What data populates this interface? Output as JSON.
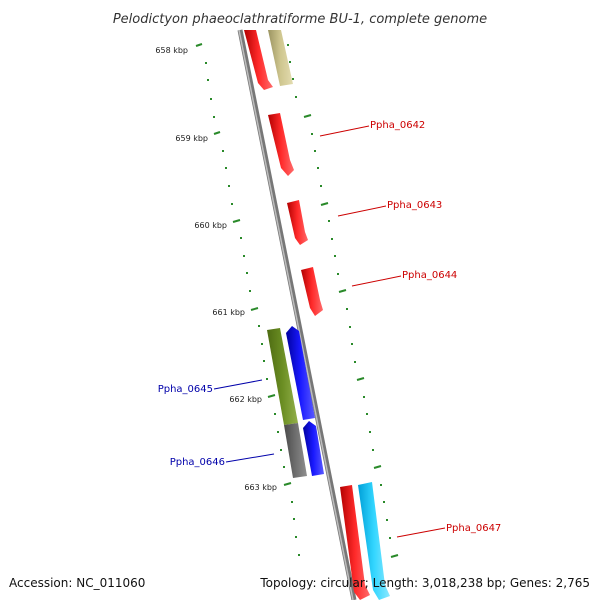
{
  "title": "Pelodictyon phaeoclathratiforme BU-1, complete genome",
  "footer": {
    "accession": "Accession: NC_011060",
    "summary": "Topology: circular; Length: 3,018,238 bp; Genes: 2,765"
  },
  "ticks": [
    "658 kbp",
    "659 kbp",
    "660 kbp",
    "661 kbp",
    "662 kbp",
    "663 kbp"
  ],
  "genes": [
    {
      "id": "gene-top-a",
      "label": "",
      "color": "#ff0000"
    },
    {
      "id": "gene-top-b",
      "label": "",
      "color": "#c8c08a"
    },
    {
      "id": "gene-0642",
      "label": "Ppha_0642",
      "color": "#ff0000",
      "label_color": "#cc0000"
    },
    {
      "id": "gene-0643",
      "label": "Ppha_0643",
      "color": "#ff0000",
      "label_color": "#cc0000"
    },
    {
      "id": "gene-0644",
      "label": "Ppha_0644",
      "color": "#ff0000",
      "label_color": "#cc0000"
    },
    {
      "id": "gene-0645",
      "label": "Ppha_0645",
      "color": "#0000ff",
      "label_color": "#0000aa"
    },
    {
      "id": "gene-0646",
      "label": "Ppha_0646",
      "color": "#0000ff",
      "label_color": "#0000aa"
    },
    {
      "id": "gene-0647",
      "label": "Ppha_0647",
      "color": "#ff0000",
      "label_color": "#cc0000"
    },
    {
      "id": "gene-bottom-cyan",
      "label": "",
      "color": "#22ccff"
    }
  ],
  "colors": {
    "backbone": "#888888",
    "tick": "#2a8a2a",
    "forward_gene": "#ff0000",
    "reverse_gene": "#0000ff",
    "olive": "#6b8e23",
    "gray_block": "#666666",
    "cyan": "#22ccff"
  }
}
